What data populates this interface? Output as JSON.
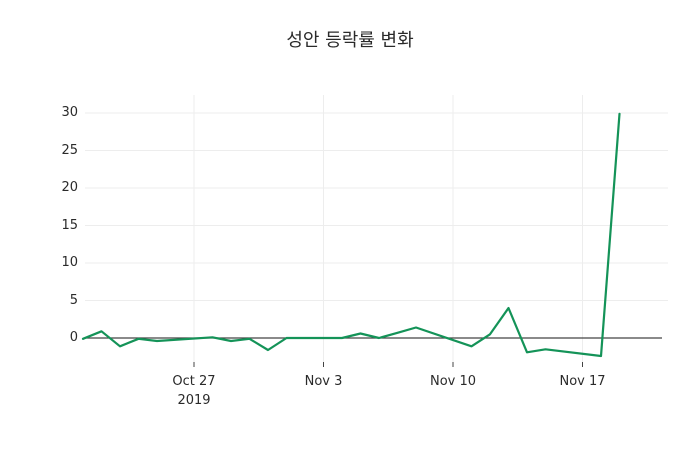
{
  "title": "성안 등락률 변화",
  "colors": {
    "line": "#149358",
    "zero_line": "#444444",
    "grid": "#ededed",
    "tick_mark": "#444444",
    "text": "#2a2a2a",
    "background": "#ffffff"
  },
  "chart_data": {
    "type": "line",
    "title": "성안 등락률 변화",
    "xlabel": "",
    "ylabel": "",
    "legend": "none",
    "grid": true,
    "zeroline": true,
    "ylim": [
      -3.2,
      32.4
    ],
    "y_ticks": [
      {
        "value": 0,
        "label": "0"
      },
      {
        "value": 5,
        "label": "5"
      },
      {
        "value": 10,
        "label": "10"
      },
      {
        "value": 15,
        "label": "15"
      },
      {
        "value": 20,
        "label": "20"
      },
      {
        "value": 25,
        "label": "25"
      },
      {
        "value": 30,
        "label": "30"
      }
    ],
    "x_ticks": [
      {
        "day": 6,
        "label": "Oct 27\n2019"
      },
      {
        "day": 13,
        "label": "Nov 3"
      },
      {
        "day": 20,
        "label": "Nov 10"
      },
      {
        "day": 27,
        "label": "Nov 17"
      }
    ],
    "series": [
      {
        "name": "성안 등락률",
        "color": "#149358",
        "points": [
          {
            "date": "2019-10-21",
            "day": 0,
            "value": -0.1
          },
          {
            "date": "2019-10-22",
            "day": 1,
            "value": 0.9
          },
          {
            "date": "2019-10-23",
            "day": 2,
            "value": -1.1
          },
          {
            "date": "2019-10-24",
            "day": 3,
            "value": -0.1
          },
          {
            "date": "2019-10-25",
            "day": 4,
            "value": -0.4
          },
          {
            "date": "2019-10-28",
            "day": 7,
            "value": 0.1
          },
          {
            "date": "2019-10-29",
            "day": 8,
            "value": -0.4
          },
          {
            "date": "2019-10-30",
            "day": 9,
            "value": -0.1
          },
          {
            "date": "2019-10-31",
            "day": 10,
            "value": -1.6
          },
          {
            "date": "2019-11-01",
            "day": 11,
            "value": 0.0
          },
          {
            "date": "2019-11-04",
            "day": 14,
            "value": 0.0
          },
          {
            "date": "2019-11-05",
            "day": 15,
            "value": 0.6
          },
          {
            "date": "2019-11-06",
            "day": 16,
            "value": 0.0
          },
          {
            "date": "2019-11-07",
            "day": 17,
            "value": 0.7
          },
          {
            "date": "2019-11-08",
            "day": 18,
            "value": 1.4
          },
          {
            "date": "2019-11-11",
            "day": 21,
            "value": -1.1
          },
          {
            "date": "2019-11-12",
            "day": 22,
            "value": 0.5
          },
          {
            "date": "2019-11-13",
            "day": 23,
            "value": 4.0
          },
          {
            "date": "2019-11-14",
            "day": 24,
            "value": -1.9
          },
          {
            "date": "2019-11-15",
            "day": 25,
            "value": -1.5
          },
          {
            "date": "2019-11-18",
            "day": 28,
            "value": -2.4
          },
          {
            "date": "2019-11-19",
            "day": 29,
            "value": 29.9
          }
        ]
      }
    ]
  }
}
